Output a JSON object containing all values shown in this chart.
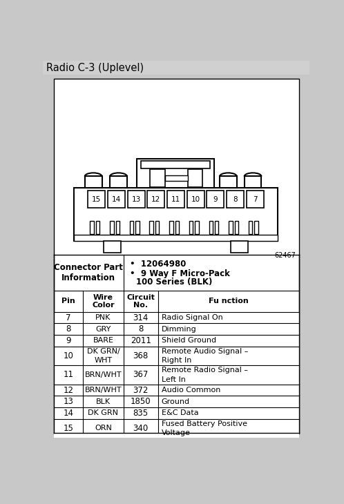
{
  "title": "Radio C-3 (Uplevel)",
  "title_bg": "#d0d0d0",
  "connector_part_label": "Connector Part\nInformation",
  "connector_bullets": [
    "12064980",
    "9 Way F Micro-Pack\n100 Series (BLK)"
  ],
  "col_headers": [
    "Pin",
    "Wire\nColor",
    "Circuit\nNo.",
    "Fu nction"
  ],
  "rows": [
    [
      "7",
      "PNK",
      "314",
      "Radio Signal On"
    ],
    [
      "8",
      "GRY",
      "8",
      "Dimming"
    ],
    [
      "9",
      "BARE",
      "2011",
      "Shield Ground"
    ],
    [
      "10",
      "DK GRN/\nWHT",
      "368",
      "Remote Audio Signal –\nRight In"
    ],
    [
      "11",
      "BRN/WHT",
      "367",
      "Remote Radio Signal –\nLeft In"
    ],
    [
      "12",
      "BRN/WHT",
      "372",
      "Audio Common"
    ],
    [
      "13",
      "BLK",
      "1850",
      "Ground"
    ],
    [
      "14",
      "DK GRN",
      "835",
      "E&C Data"
    ],
    [
      "15",
      "ORN",
      "340",
      "Fused Battery Positive\nVoltage"
    ]
  ],
  "pin_labels": [
    "15",
    "14",
    "13",
    "12",
    "11",
    "10",
    "9",
    "8",
    "7"
  ],
  "figure_id": "62467",
  "bg_color": "#ffffff",
  "outer_bg": "#c8c8c8"
}
